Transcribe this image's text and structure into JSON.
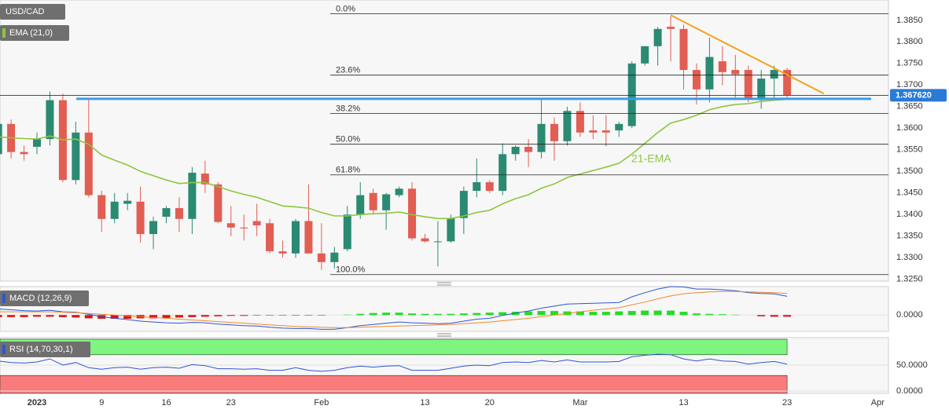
{
  "chart_data": {
    "type": "candlestick",
    "title": "USD/CAD",
    "categories": [
      null,
      null,
      null,
      "2023",
      null,
      null,
      null,
      null,
      "9",
      null,
      null,
      null,
      null,
      "16",
      null,
      null,
      null,
      null,
      "23",
      null,
      null,
      null,
      null,
      null,
      null,
      "Feb",
      null,
      null,
      null,
      null,
      null,
      null,
      null,
      "13",
      null,
      null,
      null,
      null,
      "20",
      null,
      null,
      null,
      null,
      null,
      null,
      "Mar",
      null,
      null,
      null,
      null,
      null,
      null,
      null,
      "13",
      null,
      null,
      null,
      null,
      null,
      null,
      null,
      "23",
      null,
      null,
      null,
      null,
      null,
      null,
      "Apr"
    ],
    "open": [
      1.354,
      1.361,
      1.3545,
      1.3557,
      1.3575,
      1.3665,
      1.348,
      1.359,
      1.3445,
      1.339,
      1.3425,
      1.343,
      1.3355,
      1.3395,
      1.3415,
      1.339,
      1.3495,
      1.347,
      1.338,
      1.337,
      1.3385,
      1.338,
      1.3315,
      1.331,
      1.3385,
      1.331,
      1.329,
      1.332,
      1.34,
      1.345,
      1.341,
      1.3445,
      1.346,
      1.3345,
      1.3337,
      1.3338,
      1.3392,
      1.3455,
      1.3475,
      1.3455,
      1.354,
      1.3557,
      1.3545,
      1.361,
      1.357,
      1.364,
      1.3595,
      1.3595,
      1.3595,
      1.3605,
      1.375,
      1.379,
      1.3835,
      1.383,
      1.3735,
      1.369,
      1.3755,
      1.3735,
      1.3735,
      1.3665,
      1.3715,
      1.3735,
      null,
      null,
      null,
      null,
      null,
      null,
      null
    ],
    "high": [
      1.362,
      1.362,
      1.356,
      1.359,
      1.3685,
      1.368,
      1.3615,
      1.367,
      1.3455,
      1.345,
      1.345,
      1.3465,
      1.3395,
      1.342,
      1.344,
      1.351,
      1.3525,
      1.3475,
      1.342,
      1.34,
      1.3425,
      1.339,
      1.334,
      1.339,
      1.347,
      1.338,
      1.3325,
      1.342,
      1.3475,
      1.346,
      1.345,
      1.3465,
      1.3475,
      1.3355,
      1.3385,
      1.34,
      1.3465,
      1.353,
      1.348,
      1.3565,
      1.356,
      1.3575,
      1.3665,
      1.3625,
      1.365,
      1.366,
      1.363,
      1.363,
      1.3615,
      1.3755,
      1.379,
      1.3835,
      1.386,
      1.384,
      1.375,
      1.381,
      1.379,
      1.377,
      1.3745,
      1.3735,
      1.3745,
      1.374,
      null,
      null,
      null,
      null,
      null,
      null,
      null
    ],
    "low": [
      1.348,
      1.353,
      1.3525,
      1.354,
      1.356,
      1.3475,
      1.347,
      1.344,
      1.336,
      1.338,
      1.341,
      1.3335,
      1.332,
      1.338,
      1.336,
      1.3355,
      1.345,
      1.338,
      1.335,
      1.334,
      1.335,
      1.331,
      1.33,
      1.33,
      1.331,
      1.3272,
      1.3275,
      1.3315,
      1.339,
      1.34,
      1.3365,
      1.344,
      1.334,
      1.3335,
      1.328,
      1.3335,
      1.3355,
      1.344,
      1.345,
      1.3445,
      1.3525,
      1.351,
      1.353,
      1.3525,
      1.356,
      1.358,
      1.3575,
      1.3558,
      1.358,
      1.36,
      1.3745,
      1.3745,
      1.3755,
      1.369,
      1.3655,
      1.366,
      1.37,
      1.3665,
      1.366,
      1.3645,
      1.3665,
      1.367,
      null,
      null,
      null,
      null,
      null,
      null,
      null
    ],
    "close": [
      1.361,
      1.3545,
      1.354,
      1.3575,
      1.3665,
      1.348,
      1.359,
      1.3445,
      1.339,
      1.343,
      1.3432,
      1.3355,
      1.3385,
      1.3415,
      1.339,
      1.3497,
      1.347,
      1.3383,
      1.337,
      1.3368,
      1.3375,
      1.3315,
      1.331,
      1.3385,
      1.331,
      1.329,
      1.3312,
      1.34,
      1.3445,
      1.341,
      1.3447,
      1.346,
      1.3345,
      1.3338,
      1.3338,
      1.3392,
      1.3455,
      1.3475,
      1.3455,
      1.354,
      1.3557,
      1.3545,
      1.361,
      1.357,
      1.364,
      1.359,
      1.359,
      1.359,
      1.361,
      1.375,
      1.379,
      1.383,
      1.383,
      1.3735,
      1.369,
      1.3765,
      1.373,
      1.3725,
      1.367,
      1.3715,
      1.3735,
      1.36762,
      null,
      null,
      null,
      null,
      null,
      null,
      null
    ],
    "up_color": "#2b8a72",
    "down_color": "#e25d52",
    "ylim": [
      1.3246,
      1.3897
    ],
    "yticks": [
      {
        "value": 1.325,
        "label": "1.3250"
      },
      {
        "value": 1.33,
        "label": "1.3300"
      },
      {
        "value": 1.335,
        "label": "1.3350"
      },
      {
        "value": 1.34,
        "label": "1.3400"
      },
      {
        "value": 1.345,
        "label": "1.3450"
      },
      {
        "value": 1.35,
        "label": "1.3500"
      },
      {
        "value": 1.355,
        "label": "1.3550"
      },
      {
        "value": 1.36,
        "label": "1.3600"
      },
      {
        "value": 1.365,
        "label": "1.3650"
      },
      {
        "value": 1.37,
        "label": "1.3700"
      },
      {
        "value": 1.375,
        "label": "1.3750"
      },
      {
        "value": 1.38,
        "label": "1.3800"
      },
      {
        "value": 1.385,
        "label": "1.3850"
      }
    ],
    "grid": true,
    "current_price": {
      "value": 1.36762,
      "label": "1.367620"
    },
    "price_tag_color": "#2a7ad6",
    "ema": {
      "name": "EMA (21,0)",
      "annotation": "21-EMA",
      "color": "#8dc63f",
      "values": [
        1.358,
        1.3578,
        1.3576,
        1.3575,
        1.3582,
        1.3573,
        1.3575,
        1.3563,
        1.3538,
        1.3526,
        1.3515,
        1.35,
        1.349,
        1.348,
        1.3472,
        1.3474,
        1.3474,
        1.3465,
        1.3455,
        1.3447,
        1.344,
        1.343,
        1.342,
        1.3418,
        1.3415,
        1.3405,
        1.3397,
        1.3397,
        1.34,
        1.3402,
        1.3403,
        1.3406,
        1.34,
        1.3395,
        1.3391,
        1.3391,
        1.3397,
        1.3405,
        1.341,
        1.3425,
        1.3437,
        1.3446,
        1.3461,
        1.3471,
        1.3486,
        1.3494,
        1.3502,
        1.351,
        1.3519,
        1.354,
        1.3565,
        1.359,
        1.3612,
        1.362,
        1.363,
        1.3643,
        1.365,
        1.3655,
        1.3657,
        1.3662,
        1.3665,
        1.3667,
        null,
        null,
        null,
        null,
        null,
        null,
        null
      ]
    },
    "fibonacci": [
      {
        "label": "0.0%",
        "price": 1.3865
      },
      {
        "label": "23.6%",
        "price": 1.3723
      },
      {
        "label": "38.2%",
        "price": 1.3634
      },
      {
        "label": "50.0%",
        "price": 1.3563
      },
      {
        "label": "61.8%",
        "price": 1.3492
      },
      {
        "label": "100.0%",
        "price": 1.3261
      }
    ],
    "support": {
      "value": 1.3668,
      "color": "#3d9be9"
    },
    "trendline": {
      "values": [
        1.3862,
        1.368
      ],
      "color": "#f5a21b"
    },
    "macd": {
      "title": "MACD (12,26,9)",
      "ylim": [
        -0.004,
        0.007
      ],
      "yticks": [
        {
          "value": 0,
          "label": "0.0000"
        }
      ],
      "macd_line": {
        "color": "#2f55d4",
        "values": [
          0.0015,
          0.0013,
          0.0011,
          0.001,
          0.0012,
          0.0008,
          0.0007,
          0.0002,
          -0.0004,
          -0.0008,
          -0.0011,
          -0.0015,
          -0.0017,
          -0.0019,
          -0.002,
          -0.0018,
          -0.0019,
          -0.0022,
          -0.0024,
          -0.0026,
          -0.0027,
          -0.003,
          -0.0032,
          -0.0033,
          -0.0033,
          -0.0035,
          -0.0035,
          -0.0031,
          -0.0026,
          -0.0023,
          -0.002,
          -0.0017,
          -0.0019,
          -0.002,
          -0.0021,
          -0.002,
          -0.0015,
          -0.001,
          -0.0008,
          -0.0001,
          0.0005,
          0.001,
          0.0017,
          0.0022,
          0.0027,
          0.0028,
          0.0029,
          0.003,
          0.0031,
          0.0045,
          0.0055,
          0.0064,
          0.007,
          0.0069,
          0.0064,
          0.0064,
          0.0062,
          0.006,
          0.0055,
          0.0053,
          0.0052,
          0.0046,
          null,
          null,
          null,
          null,
          null,
          null,
          null
        ]
      },
      "signal_line": {
        "color": "#f08a2c",
        "values": [
          0.0008,
          0.0008,
          0.0008,
          0.0008,
          0.0008,
          0.0007,
          0.0006,
          0.0004,
          0.0002,
          0.0,
          -0.0002,
          -0.0004,
          -0.0006,
          -0.0008,
          -0.001,
          -0.0012,
          -0.0014,
          -0.0016,
          -0.0018,
          -0.002,
          -0.0022,
          -0.0024,
          -0.0026,
          -0.0028,
          -0.0029,
          -0.003,
          -0.0031,
          -0.0031,
          -0.003,
          -0.0029,
          -0.0028,
          -0.0027,
          -0.0026,
          -0.0025,
          -0.0024,
          -0.0023,
          -0.0021,
          -0.0019,
          -0.0017,
          -0.0014,
          -0.0011,
          -0.0008,
          -0.0004,
          0.0,
          0.0004,
          0.0008,
          0.0012,
          0.0015,
          0.0018,
          0.0025,
          0.0032,
          0.004,
          0.0047,
          0.0052,
          0.0055,
          0.0057,
          0.0058,
          0.0058,
          0.0057,
          0.0056,
          0.0055,
          0.0053,
          null,
          null,
          null,
          null,
          null,
          null,
          null
        ]
      },
      "histogram": {
        "up_color": "#22dd22",
        "down_color": "#e01010",
        "values": [
          -0.0005,
          -0.0005,
          -0.0005,
          -0.0004,
          -0.0004,
          -0.0005,
          -0.0006,
          -0.0008,
          -0.0009,
          -0.0009,
          -0.0009,
          -0.0008,
          -0.0008,
          -0.0007,
          -0.0006,
          -0.0005,
          -0.0004,
          -0.0003,
          -0.0002,
          -0.0002,
          -0.0001,
          -0.0001,
          -0.0001,
          -0.0001,
          -0.0001,
          -0.0001,
          0.0,
          0.0001,
          0.0003,
          0.0005,
          0.0006,
          0.0006,
          0.0004,
          0.0003,
          0.0003,
          0.0003,
          0.0004,
          0.0005,
          0.0006,
          0.0007,
          0.0008,
          0.0009,
          0.001,
          0.001,
          0.0009,
          0.0009,
          0.0008,
          0.0008,
          0.0009,
          0.001,
          0.0011,
          0.0011,
          0.0011,
          0.0008,
          0.0004,
          0.0003,
          0.0002,
          0.0001,
          0.0,
          -0.0003,
          -0.0004,
          -0.0004,
          null,
          null,
          null,
          null,
          null,
          null,
          null
        ]
      }
    },
    "rsi": {
      "title": "RSI (14,70,30,1)",
      "ylim": [
        0,
        100
      ],
      "yticks": [
        {
          "value": 50,
          "label": "50.0000"
        },
        {
          "value": 0,
          "label": "0.0000"
        }
      ],
      "overbought": 70,
      "oversold": 30,
      "overbought_color": "#7ef57e",
      "oversold_color": "#f97b7b",
      "color": "#2f55d4",
      "values": [
        58,
        55,
        54,
        56,
        62,
        50,
        55,
        45,
        42,
        45,
        46,
        42,
        45,
        46,
        44,
        51,
        49,
        43,
        43,
        42,
        43,
        40,
        40,
        45,
        40,
        38,
        40,
        45,
        48,
        46,
        48,
        49,
        40,
        40,
        40,
        44,
        48,
        50,
        49,
        55,
        56,
        55,
        59,
        56,
        60,
        56,
        56,
        56,
        57,
        66,
        69,
        71,
        70,
        62,
        58,
        62,
        58,
        57,
        52,
        55,
        57,
        52,
        null,
        null,
        null,
        null,
        null,
        null,
        null
      ]
    }
  }
}
